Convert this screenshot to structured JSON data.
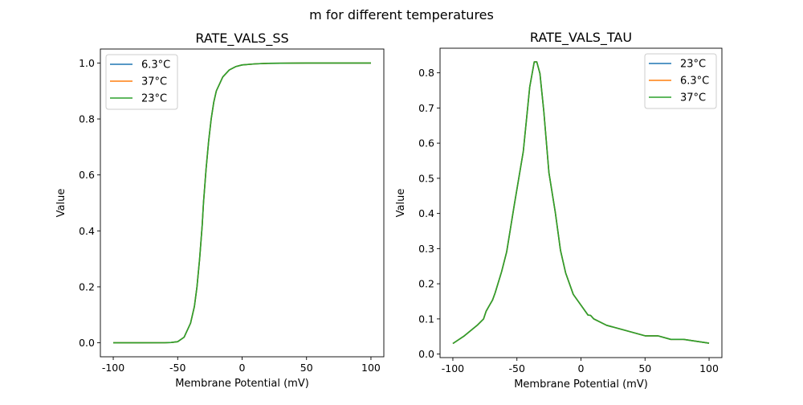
{
  "figure_title": "m for different temperatures",
  "colors": {
    "blue": "#1f77b4",
    "orange": "#ff7f0e",
    "green": "#2ca02c"
  },
  "chart_data": [
    {
      "type": "line",
      "title": "RATE_VALS_SS",
      "xlabel": "Membrane Potential (mV)",
      "ylabel": "Value",
      "xlim": [
        -110,
        110
      ],
      "ylim": [
        -0.05,
        1.05
      ],
      "xticks": [
        -100,
        -50,
        0,
        50,
        100
      ],
      "yticks": [
        0.0,
        0.2,
        0.4,
        0.6,
        0.8,
        1.0
      ],
      "grid": false,
      "legend": "top-left",
      "x": [
        -100,
        -80,
        -60,
        -55,
        -50,
        -45,
        -40,
        -37,
        -35,
        -33,
        -31,
        -30,
        -28,
        -26,
        -24,
        -22,
        -20,
        -15,
        -10,
        -5,
        0,
        10,
        20,
        50,
        100
      ],
      "series": [
        {
          "name": "6.3°C",
          "color": "#1f77b4",
          "values": [
            0,
            0,
            0.0003,
            0.001,
            0.004,
            0.02,
            0.07,
            0.13,
            0.2,
            0.3,
            0.42,
            0.5,
            0.62,
            0.72,
            0.8,
            0.86,
            0.9,
            0.95,
            0.975,
            0.987,
            0.993,
            0.997,
            0.999,
            1.0,
            1.0
          ]
        },
        {
          "name": "37°C",
          "color": "#ff7f0e",
          "values": [
            0,
            0,
            0.0003,
            0.001,
            0.004,
            0.02,
            0.07,
            0.13,
            0.2,
            0.3,
            0.42,
            0.5,
            0.62,
            0.72,
            0.8,
            0.86,
            0.9,
            0.95,
            0.975,
            0.987,
            0.993,
            0.997,
            0.999,
            1.0,
            1.0
          ]
        },
        {
          "name": "23°C",
          "color": "#2ca02c",
          "values": [
            0,
            0,
            0.0003,
            0.001,
            0.004,
            0.02,
            0.07,
            0.13,
            0.2,
            0.3,
            0.42,
            0.5,
            0.62,
            0.72,
            0.8,
            0.86,
            0.9,
            0.95,
            0.975,
            0.987,
            0.993,
            0.997,
            0.999,
            1.0,
            1.0
          ]
        }
      ]
    },
    {
      "type": "line",
      "title": "RATE_VALS_TAU",
      "xlabel": "Membrane Potential (mV)",
      "ylabel": "Value",
      "xlim": [
        -110,
        110
      ],
      "ylim": [
        -0.01,
        0.87
      ],
      "xticks": [
        -100,
        -50,
        0,
        50,
        100
      ],
      "yticks": [
        0.0,
        0.1,
        0.2,
        0.3,
        0.4,
        0.5,
        0.6,
        0.7,
        0.8
      ],
      "grid": false,
      "legend": "top-right",
      "x": [
        -100,
        -91,
        -81,
        -76,
        -74,
        -72,
        -69,
        -67,
        -62,
        -58,
        -52,
        -45,
        -40,
        -36.5,
        -34.5,
        -32,
        -29,
        -25,
        -20,
        -16,
        -12,
        -6,
        5.5,
        7.5,
        10,
        20,
        50,
        60,
        70,
        80,
        100
      ],
      "series": [
        {
          "name": "23°C",
          "color": "#1f77b4",
          "values": [
            0.03,
            0.052,
            0.082,
            0.1,
            0.122,
            0.135,
            0.154,
            0.174,
            0.234,
            0.291,
            0.425,
            0.577,
            0.76,
            0.831,
            0.831,
            0.798,
            0.691,
            0.516,
            0.402,
            0.295,
            0.231,
            0.17,
            0.111,
            0.11,
            0.1,
            0.082,
            0.052,
            0.052,
            0.042,
            0.042,
            0.031
          ]
        },
        {
          "name": "6.3°C",
          "color": "#ff7f0e",
          "values": [
            0.03,
            0.052,
            0.082,
            0.1,
            0.122,
            0.135,
            0.154,
            0.174,
            0.234,
            0.291,
            0.425,
            0.577,
            0.76,
            0.831,
            0.831,
            0.798,
            0.691,
            0.516,
            0.402,
            0.295,
            0.231,
            0.17,
            0.111,
            0.11,
            0.1,
            0.082,
            0.052,
            0.052,
            0.042,
            0.042,
            0.031
          ]
        },
        {
          "name": "37°C",
          "color": "#2ca02c",
          "values": [
            0.03,
            0.052,
            0.082,
            0.1,
            0.122,
            0.135,
            0.154,
            0.174,
            0.234,
            0.291,
            0.425,
            0.577,
            0.76,
            0.831,
            0.831,
            0.798,
            0.691,
            0.516,
            0.402,
            0.295,
            0.231,
            0.17,
            0.111,
            0.11,
            0.1,
            0.082,
            0.052,
            0.052,
            0.042,
            0.042,
            0.031
          ]
        }
      ]
    }
  ]
}
